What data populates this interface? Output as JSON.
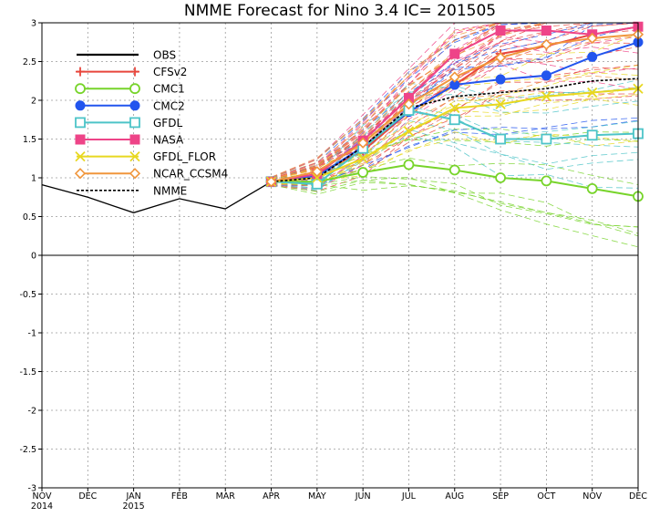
{
  "chart_data": {
    "type": "line",
    "title": "NMME Forecast for Nino 3.4   IC= 201505",
    "xlabel": "",
    "ylabel": "",
    "ylim": [
      -3,
      3
    ],
    "yticks": [
      "3",
      "2.5",
      "2",
      "1.5",
      "1",
      "0.5",
      "0",
      "-0.5",
      "-1",
      "-1.5",
      "-2",
      "-2.5",
      "-3"
    ],
    "months": [
      "NOV",
      "DEC",
      "JAN",
      "FEB",
      "MAR",
      "APR",
      "MAY",
      "JUN",
      "JUL",
      "AUG",
      "SEP",
      "OCT",
      "NOV",
      "DEC"
    ],
    "years": [
      {
        "month_index": 0,
        "label": "2014"
      },
      {
        "month_index": 2,
        "label": "2015"
      }
    ],
    "grid": true,
    "legend_position": "top-left",
    "series": [
      {
        "name": "OBS",
        "color": "#000000",
        "marker": "none",
        "dashed": false,
        "start": 0,
        "values": [
          0.91,
          0.75,
          0.55,
          0.73,
          0.6,
          0.95
        ]
      },
      {
        "name": "CFSv2",
        "color": "#e8463c",
        "marker": "plus",
        "dashed": false,
        "start": 5,
        "values": [
          0.95,
          1.05,
          1.35,
          1.85,
          2.2,
          2.6,
          2.7,
          2.85,
          2.95
        ]
      },
      {
        "name": "CMC1",
        "color": "#77d42a",
        "marker": "circle-open",
        "dashed": false,
        "start": 5,
        "values": [
          0.95,
          0.95,
          1.07,
          1.17,
          1.1,
          1.0,
          0.96,
          0.86,
          0.76
        ]
      },
      {
        "name": "CMC2",
        "color": "#2255ee",
        "marker": "circle-filled",
        "dashed": false,
        "start": 5,
        "values": [
          0.95,
          1.02,
          1.4,
          1.85,
          2.2,
          2.27,
          2.32,
          2.56,
          2.75
        ]
      },
      {
        "name": "GFDL",
        "color": "#4dc4c8",
        "marker": "square-open",
        "dashed": false,
        "start": 5,
        "values": [
          0.95,
          0.92,
          1.38,
          1.87,
          1.75,
          1.5,
          1.5,
          1.55,
          1.57
        ]
      },
      {
        "name": "NASA",
        "color": "#ee4488",
        "marker": "square-filled",
        "dashed": false,
        "start": 5,
        "values": [
          0.95,
          1.05,
          1.48,
          2.03,
          2.6,
          2.9,
          2.9,
          2.85,
          2.95
        ]
      },
      {
        "name": "GFDL_FLOR",
        "color": "#e8d820",
        "marker": "x",
        "dashed": false,
        "start": 5,
        "values": [
          0.95,
          1.0,
          1.25,
          1.6,
          1.9,
          1.95,
          2.05,
          2.1,
          2.15
        ]
      },
      {
        "name": "NCAR_CCSM4",
        "color": "#f0963c",
        "marker": "diamond-open",
        "dashed": false,
        "start": 5,
        "values": [
          0.95,
          1.08,
          1.45,
          1.95,
          2.3,
          2.55,
          2.72,
          2.8,
          2.85
        ]
      },
      {
        "name": "NMME",
        "color": "#000000",
        "marker": "none",
        "dashed": true,
        "start": 5,
        "values": [
          0.95,
          1.0,
          1.4,
          1.9,
          2.05,
          2.1,
          2.15,
          2.25,
          2.28
        ]
      }
    ]
  }
}
